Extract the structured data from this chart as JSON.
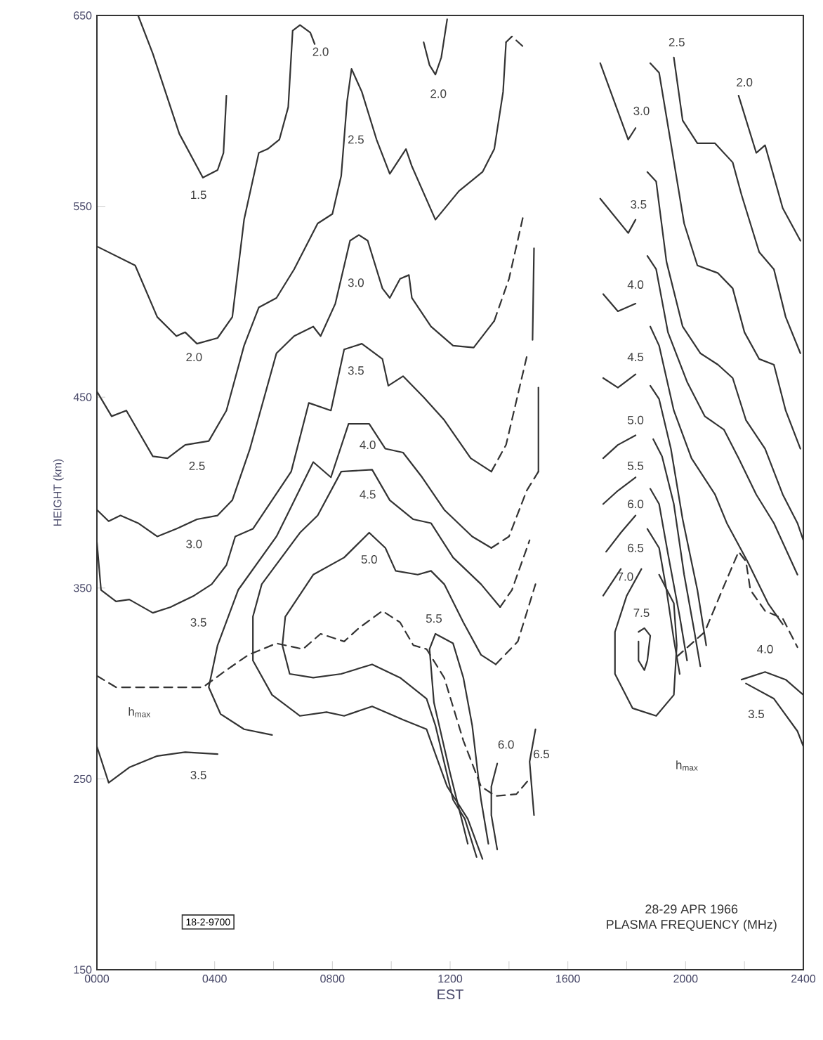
{
  "chart_data": {
    "type": "line",
    "title": "28-29 APR 1966",
    "subtitle": "PLASMA FREQUENCY (MHz)",
    "xlabel": "EST",
    "ylabel": "HEIGHT (km)",
    "xlim": [
      0,
      2400
    ],
    "ylim": [
      150,
      650
    ],
    "xticks": [
      {
        "value": 0,
        "label": "0000"
      },
      {
        "value": 200,
        "label": null
      },
      {
        "value": 400,
        "label": "0400"
      },
      {
        "value": 600,
        "label": null
      },
      {
        "value": 800,
        "label": "0800"
      },
      {
        "value": 1000,
        "label": null
      },
      {
        "value": 1200,
        "label": "1200"
      },
      {
        "value": 1400,
        "label": null
      },
      {
        "value": 1600,
        "label": "1600"
      },
      {
        "value": 1800,
        "label": null
      },
      {
        "value": 2000,
        "label": "2000"
      },
      {
        "value": 2200,
        "label": null
      },
      {
        "value": 2400,
        "label": "2400"
      }
    ],
    "yticks": [
      150,
      250,
      350,
      450,
      550,
      650
    ],
    "grid": false,
    "marker": "none",
    "line_style": "solid",
    "series": [
      {
        "color": "#333333",
        "x": [
          140,
          190,
          280,
          360,
          410,
          430,
          440
        ],
        "values": [
          650,
          630,
          588,
          565,
          569,
          578,
          608
        ]
      },
      {
        "color": "#333333",
        "x": [
          0,
          130,
          205,
          270,
          300,
          340,
          410,
          460,
          500,
          550,
          580,
          620,
          650,
          665,
          690,
          725,
          740
        ],
        "values": [
          529,
          519,
          492,
          482,
          484,
          478,
          481,
          492,
          543,
          578,
          580,
          585,
          602,
          642,
          645,
          641,
          635
        ]
      },
      {
        "color": "#333333",
        "x": [
          1110,
          1130,
          1150,
          1170,
          1190
        ],
        "values": [
          636,
          624,
          619,
          628,
          648
        ]
      },
      {
        "color": "#333333",
        "x": [
          0,
          50,
          100,
          190,
          240,
          300,
          380,
          440,
          500,
          550,
          610,
          670,
          750,
          800,
          830,
          850,
          865,
          900,
          950,
          995,
          1050,
          1070,
          1150,
          1230,
          1310,
          1350,
          1380,
          1390
        ],
        "values": [
          453,
          440,
          443,
          419,
          418,
          425,
          427,
          443,
          477,
          497,
          502,
          517,
          541,
          546,
          566,
          605,
          622,
          610,
          585,
          567,
          580,
          571,
          543,
          558,
          568,
          580,
          610,
          636
        ]
      },
      {
        "color": "#333333",
        "line_style": "dashed",
        "x": [
          1390,
          1410,
          1460
        ],
        "values": [
          636,
          639,
          632
        ]
      },
      {
        "color": "#333333",
        "x": [
          0,
          40,
          80,
          140,
          205,
          270,
          340,
          410,
          460,
          520,
          610,
          670,
          735,
          760,
          810,
          860,
          890,
          920,
          970,
          995,
          1030,
          1060,
          1070,
          1135,
          1210,
          1280,
          1350
        ],
        "values": [
          391,
          385,
          388,
          384,
          377,
          381,
          386,
          388,
          396,
          423,
          473,
          482,
          487,
          482,
          499,
          532,
          535,
          532,
          507,
          502,
          512,
          514,
          502,
          487,
          477,
          476,
          490
        ]
      },
      {
        "color": "#333333",
        "line_style": "dashed",
        "x": [
          1350,
          1400,
          1450
        ],
        "values": [
          490,
          512,
          546
        ]
      },
      {
        "color": "#333333",
        "x": [
          0,
          14,
          65,
          110,
          190,
          250,
          330,
          390,
          440,
          470,
          530,
          660,
          720,
          795,
          840,
          900,
          970,
          990,
          1040,
          1110,
          1180,
          1270,
          1340
        ],
        "values": [
          374,
          349,
          343,
          344,
          337,
          340,
          346,
          352,
          362,
          377,
          381,
          411,
          447,
          443,
          475,
          478,
          470,
          456,
          461,
          450,
          438,
          418,
          411
        ]
      },
      {
        "color": "#333333",
        "line_style": "dashed",
        "x": [
          1340,
          1390,
          1460
        ],
        "values": [
          411,
          425,
          471
        ]
      },
      {
        "color": "#333333",
        "x": [
          1480,
          1485
        ],
        "values": [
          480,
          528
        ]
      },
      {
        "color": "#333333",
        "x": [
          0,
          40,
          110,
          205,
          300,
          410
        ],
        "values": [
          267,
          248,
          256,
          262,
          264,
          263
        ]
      },
      {
        "color": "#333333",
        "x": [
          595,
          500,
          420,
          380,
          410,
          480,
          610,
          655,
          735,
          795,
          855,
          925,
          980,
          1040,
          1105,
          1180,
          1275,
          1340
        ],
        "values": [
          273,
          276,
          284,
          298,
          320,
          349,
          377,
          391,
          416,
          408,
          436,
          436,
          423,
          421,
          408,
          391,
          377,
          371
        ]
      },
      {
        "color": "#333333",
        "line_style": "dashed",
        "x": [
          1340,
          1400,
          1460,
          1500
        ],
        "values": [
          371,
          377,
          401,
          411
        ]
      },
      {
        "color": "#333333",
        "x": [
          1500,
          1500
        ],
        "values": [
          411,
          455
        ]
      },
      {
        "color": "#333333",
        "x": [
          1310,
          1260,
          1190,
          1150,
          1120,
          1040,
          935,
          840,
          780,
          690,
          595,
          530,
          530,
          560,
          690,
          750,
          830,
          935,
          995,
          1075,
          1135,
          1210,
          1305,
          1370
        ],
        "values": [
          208,
          229,
          246,
          263,
          276,
          281,
          288,
          283,
          285,
          283,
          294,
          312,
          335,
          352,
          379,
          388,
          411,
          412,
          396,
          386,
          384,
          366,
          352,
          340
        ]
      },
      {
        "color": "#333333",
        "line_style": "dashed",
        "x": [
          1370,
          1410,
          1470
        ],
        "values": [
          340,
          349,
          375
        ]
      },
      {
        "color": "#333333",
        "x": [
          1290,
          1250,
          1210,
          1150,
          1120,
          1030,
          935,
          830,
          735,
          655,
          630,
          640,
          735,
          840,
          925,
          980,
          1015,
          1090,
          1135,
          1180,
          1245,
          1305,
          1355
        ],
        "values": [
          209,
          229,
          239,
          278,
          292,
          303,
          310,
          305,
          303,
          305,
          320,
          335,
          357,
          366,
          379,
          371,
          359,
          357,
          359,
          352,
          332,
          315,
          310
        ]
      },
      {
        "color": "#333333",
        "line_style": "dashed",
        "x": [
          1355,
          1430,
          1490
        ],
        "values": [
          310,
          322,
          352
        ]
      },
      {
        "color": "#333333",
        "x": [
          1260,
          1200,
          1145,
          1130,
          1150,
          1210,
          1245,
          1275,
          1305,
          1330
        ],
        "values": [
          216,
          253,
          290,
          318,
          326,
          321,
          303,
          278,
          239,
          216
        ]
      },
      {
        "color": "#333333",
        "line_style": "dashed",
        "x": [
          0,
          65,
          360,
          440,
          515,
          610,
          700,
          760,
          840,
          890,
          970,
          1030,
          1075,
          1120,
          1180,
          1245,
          1305,
          1355,
          1425,
          1470
        ],
        "values": [
          304,
          298,
          298,
          307,
          315,
          321,
          318,
          326,
          322,
          329,
          338,
          332,
          320,
          318,
          303,
          270,
          246,
          241,
          242,
          250
        ]
      },
      {
        "color": "#333333",
        "x": [
          1360,
          1340,
          1340,
          1360
        ],
        "values": [
          258,
          246,
          231,
          213
        ]
      },
      {
        "color": "#333333",
        "x": [
          1490,
          1470,
          1485
        ],
        "values": [
          276,
          259,
          231
        ]
      },
      {
        "color": "#333333",
        "x": [
          2180,
          2240,
          2270,
          2330,
          2390
        ],
        "values": [
          608,
          578,
          582,
          549,
          532
        ]
      },
      {
        "color": "#333333",
        "x": [
          1960,
          1990,
          2040,
          2100,
          2160,
          2190,
          2250,
          2300,
          2340,
          2390
        ],
        "values": [
          628,
          595,
          583,
          583,
          573,
          556,
          526,
          517,
          492,
          473
        ]
      },
      {
        "color": "#333333",
        "x": [
          1710,
          1805,
          1830,
          1850,
          1880,
          1910,
          1950,
          1995,
          2040,
          2110,
          2160,
          2200,
          2250,
          2300,
          2340,
          2390
        ],
        "values": [
          625,
          585,
          591,
          null,
          625,
          620,
          583,
          541,
          519,
          515,
          507,
          484,
          470,
          467,
          443,
          423
        ]
      },
      {
        "color": "#333333",
        "x": [
          1710,
          1805,
          1830,
          1850,
          1870,
          1900,
          1935,
          1990,
          2050,
          2110,
          2160,
          2205,
          2270,
          2330,
          2380,
          2400
        ],
        "values": [
          554,
          536,
          543,
          null,
          568,
          563,
          521,
          487,
          473,
          467,
          460,
          438,
          423,
          399,
          384,
          375
        ]
      },
      {
        "color": "#333333",
        "x": [
          1720,
          1770,
          1830,
          1850,
          1870,
          1900,
          1940,
          2005,
          2065,
          2130,
          2180,
          2240,
          2300,
          2380
        ],
        "values": [
          504,
          495,
          499,
          null,
          524,
          517,
          484,
          458,
          440,
          433,
          418,
          399,
          384,
          357
        ]
      },
      {
        "color": "#333333",
        "x": [
          1720,
          1770,
          1830,
          1850,
          1880,
          1910,
          1960,
          2020,
          2100,
          2140,
          2210,
          2280,
          2330
        ],
        "values": [
          460,
          455,
          462,
          null,
          487,
          477,
          443,
          418,
          399,
          384,
          364,
          342,
          331
        ]
      },
      {
        "color": "#333333",
        "x": [
          1720,
          1770,
          1830,
          1850,
          1880,
          1910,
          1950,
          1990,
          2040,
          2070
        ],
        "values": [
          418,
          425,
          430,
          null,
          456,
          449,
          423,
          386,
          349,
          320
        ]
      },
      {
        "color": "#333333",
        "x": [
          1720,
          1770,
          1830,
          1850,
          1890,
          1920,
          1960,
          1995,
          2030,
          2050
        ],
        "values": [
          394,
          401,
          408,
          null,
          428,
          419,
          394,
          357,
          327,
          309
        ]
      },
      {
        "color": "#333333",
        "x": [
          1730,
          1780,
          1830,
          1850,
          1880,
          1910,
          1940,
          1980,
          2005
        ],
        "values": [
          369,
          379,
          388,
          null,
          402,
          394,
          368,
          335,
          312
        ]
      },
      {
        "color": "#333333",
        "x": [
          1720,
          1780,
          1800,
          1870,
          1910,
          1935,
          1960,
          1980
        ],
        "values": [
          346,
          360,
          null,
          381,
          371,
          349,
          323,
          305
        ]
      },
      {
        "color": "#333333",
        "x": [
          1850,
          1800,
          1760,
          1760,
          1820,
          1900,
          1960,
          1970,
          1960,
          1910
        ],
        "values": [
          360,
          346,
          327,
          305,
          287,
          283,
          294,
          320,
          342,
          357
        ]
      },
      {
        "color": "#333333",
        "x": [
          1840,
          1860,
          1880,
          1870,
          1860,
          1840,
          1840
        ],
        "values": [
          327,
          329,
          325,
          312,
          307,
          312,
          322
        ]
      },
      {
        "color": "#333333",
        "x": [
          2190,
          2270,
          2340,
          2400
        ],
        "values": [
          302,
          306,
          302,
          294
        ]
      },
      {
        "color": "#333333",
        "x": [
          2205,
          2300,
          2380,
          2400
        ],
        "values": [
          300,
          292,
          275,
          267
        ]
      },
      {
        "color": "#333333",
        "line_style": "dashed",
        "x": [
          1970,
          2065,
          2130,
          2180,
          2205,
          2220,
          2270,
          2330,
          2380
        ],
        "values": [
          314,
          327,
          351,
          369,
          364,
          349,
          338,
          334,
          319
        ]
      }
    ],
    "annotations": [
      "18-2-9700",
      "h$_{max}$",
      "h$_{max}$",
      "1.5",
      "2.0",
      "2.0",
      "2.0",
      "2.5",
      "2.5",
      "3.0",
      "3.0",
      "3.5",
      "3.5",
      "3.5",
      "4.0",
      "4.5",
      "5.0",
      "5.5",
      "6.0",
      "6.5",
      "2.5",
      "2.0",
      "3.0",
      "3.5",
      "4.0",
      "4.5",
      "5.0",
      "5.5",
      "6.0",
      "6.5",
      "7.0",
      "7.5",
      "4.0",
      "3.5"
    ]
  }
}
